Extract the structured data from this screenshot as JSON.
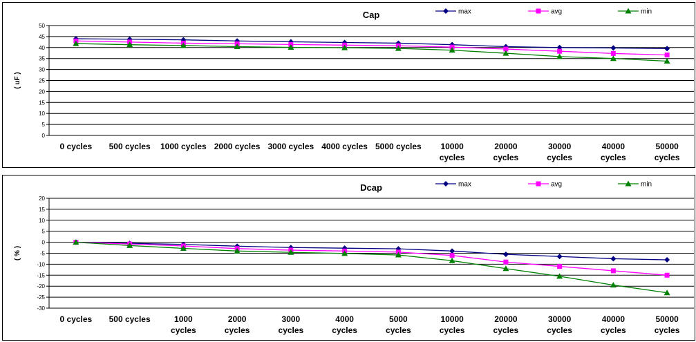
{
  "chart_data": [
    {
      "type": "line",
      "title": "Cap",
      "ylabel": "( uF )",
      "xlabel": "",
      "ylim": [
        0,
        50
      ],
      "ytick_step": 5,
      "grid": true,
      "legend_position": "top-right",
      "categories": [
        [
          "0 cycles"
        ],
        [
          "500 cycles"
        ],
        [
          "1000 cycles"
        ],
        [
          "2000 cycles"
        ],
        [
          "3000 cycles"
        ],
        [
          "4000 cycles"
        ],
        [
          "5000 cycles"
        ],
        [
          "10000",
          "cycles"
        ],
        [
          "20000",
          "cycles"
        ],
        [
          "30000",
          "cycles"
        ],
        [
          "40000",
          "cycles"
        ],
        [
          "50000",
          "cycles"
        ]
      ],
      "series": [
        {
          "name": "max",
          "color": "#000080",
          "marker": "diamond",
          "values": [
            44,
            43.8,
            43.5,
            43,
            42.6,
            42.3,
            42,
            41.3,
            40.4,
            40,
            39.8,
            39.5
          ]
        },
        {
          "name": "avg",
          "color": "#ff00ff",
          "marker": "square",
          "values": [
            43,
            42.5,
            42,
            41.7,
            41.4,
            41.1,
            40.8,
            40.2,
            39.3,
            38.3,
            37.3,
            36.6
          ]
        },
        {
          "name": "min",
          "color": "#008000",
          "marker": "triangle",
          "values": [
            41.8,
            41.3,
            40.9,
            40.4,
            40.1,
            39.9,
            39.6,
            38.8,
            37.4,
            35.9,
            35,
            33.8
          ]
        }
      ]
    },
    {
      "type": "line",
      "title": "Dcap",
      "ylabel": "( % )",
      "xlabel": "",
      "ylim": [
        -30,
        20
      ],
      "ytick_step": 5,
      "grid": true,
      "legend_position": "top-right",
      "categories": [
        [
          "0 cycles"
        ],
        [
          "500 cycles"
        ],
        [
          "1000",
          "cycles"
        ],
        [
          "2000",
          "cycles"
        ],
        [
          "3000",
          "cycles"
        ],
        [
          "4000",
          "cycles"
        ],
        [
          "5000",
          "cycles"
        ],
        [
          "10000",
          "cycles"
        ],
        [
          "20000",
          "cycles"
        ],
        [
          "30000",
          "cycles"
        ],
        [
          "40000",
          "cycles"
        ],
        [
          "50000",
          "cycles"
        ]
      ],
      "series": [
        {
          "name": "max",
          "color": "#000080",
          "marker": "diamond",
          "values": [
            0,
            -0.5,
            -1,
            -1.8,
            -2.4,
            -2.7,
            -3,
            -4,
            -5.5,
            -6.5,
            -7.5,
            -8
          ]
        },
        {
          "name": "avg",
          "color": "#ff00ff",
          "marker": "square",
          "values": [
            0,
            -0.8,
            -1.7,
            -2.9,
            -3.6,
            -4,
            -4.5,
            -6,
            -9,
            -11,
            -13,
            -15
          ]
        },
        {
          "name": "min",
          "color": "#008000",
          "marker": "triangle",
          "values": [
            0,
            -1.5,
            -2.8,
            -4,
            -4.6,
            -5.1,
            -5.8,
            -8.4,
            -12,
            -15.5,
            -19.5,
            -23
          ]
        }
      ]
    }
  ]
}
